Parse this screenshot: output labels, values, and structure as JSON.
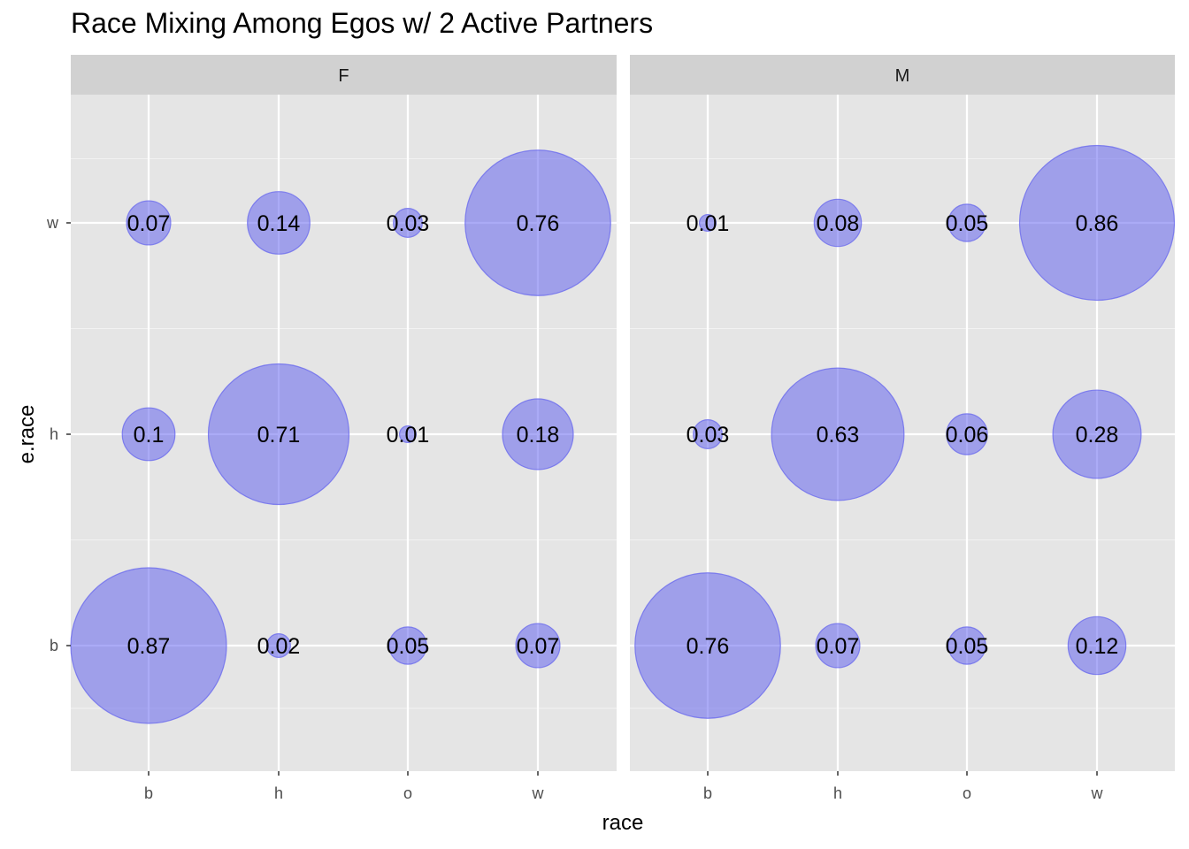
{
  "chart_data": {
    "type": "scatter",
    "subtype": "bubble",
    "title": "Race Mixing Among Egos w/ 2 Active Partners",
    "xlabel": "race",
    "ylabel": "e.race",
    "x_categories": [
      "b",
      "h",
      "o",
      "w"
    ],
    "y_categories": [
      "b",
      "h",
      "w"
    ],
    "bubble_color": "#6666ee",
    "panel_background": "#e5e5e5",
    "strip_background": "#d1d1d1",
    "grid": true,
    "facets": [
      {
        "label": "F",
        "points": [
          {
            "x": "b",
            "y": "w",
            "value": 0.07,
            "label": "0.07"
          },
          {
            "x": "h",
            "y": "w",
            "value": 0.14,
            "label": "0.14"
          },
          {
            "x": "o",
            "y": "w",
            "value": 0.03,
            "label": "0.03"
          },
          {
            "x": "w",
            "y": "w",
            "value": 0.76,
            "label": "0.76"
          },
          {
            "x": "b",
            "y": "h",
            "value": 0.1,
            "label": "0.1"
          },
          {
            "x": "h",
            "y": "h",
            "value": 0.71,
            "label": "0.71"
          },
          {
            "x": "o",
            "y": "h",
            "value": 0.01,
            "label": "0.01"
          },
          {
            "x": "w",
            "y": "h",
            "value": 0.18,
            "label": "0.18"
          },
          {
            "x": "b",
            "y": "b",
            "value": 0.87,
            "label": "0.87"
          },
          {
            "x": "h",
            "y": "b",
            "value": 0.02,
            "label": "0.02"
          },
          {
            "x": "o",
            "y": "b",
            "value": 0.05,
            "label": "0.05"
          },
          {
            "x": "w",
            "y": "b",
            "value": 0.07,
            "label": "0.07"
          }
        ]
      },
      {
        "label": "M",
        "points": [
          {
            "x": "b",
            "y": "w",
            "value": 0.01,
            "label": "0.01"
          },
          {
            "x": "h",
            "y": "w",
            "value": 0.08,
            "label": "0.08"
          },
          {
            "x": "o",
            "y": "w",
            "value": 0.05,
            "label": "0.05"
          },
          {
            "x": "w",
            "y": "w",
            "value": 0.86,
            "label": "0.86"
          },
          {
            "x": "b",
            "y": "h",
            "value": 0.03,
            "label": "0.03"
          },
          {
            "x": "h",
            "y": "h",
            "value": 0.63,
            "label": "0.63"
          },
          {
            "x": "o",
            "y": "h",
            "value": 0.06,
            "label": "0.06"
          },
          {
            "x": "w",
            "y": "h",
            "value": 0.28,
            "label": "0.28"
          },
          {
            "x": "b",
            "y": "b",
            "value": 0.76,
            "label": "0.76"
          },
          {
            "x": "h",
            "y": "b",
            "value": 0.07,
            "label": "0.07"
          },
          {
            "x": "o",
            "y": "b",
            "value": 0.05,
            "label": "0.05"
          },
          {
            "x": "w",
            "y": "b",
            "value": 0.12,
            "label": "0.12"
          }
        ]
      }
    ]
  }
}
